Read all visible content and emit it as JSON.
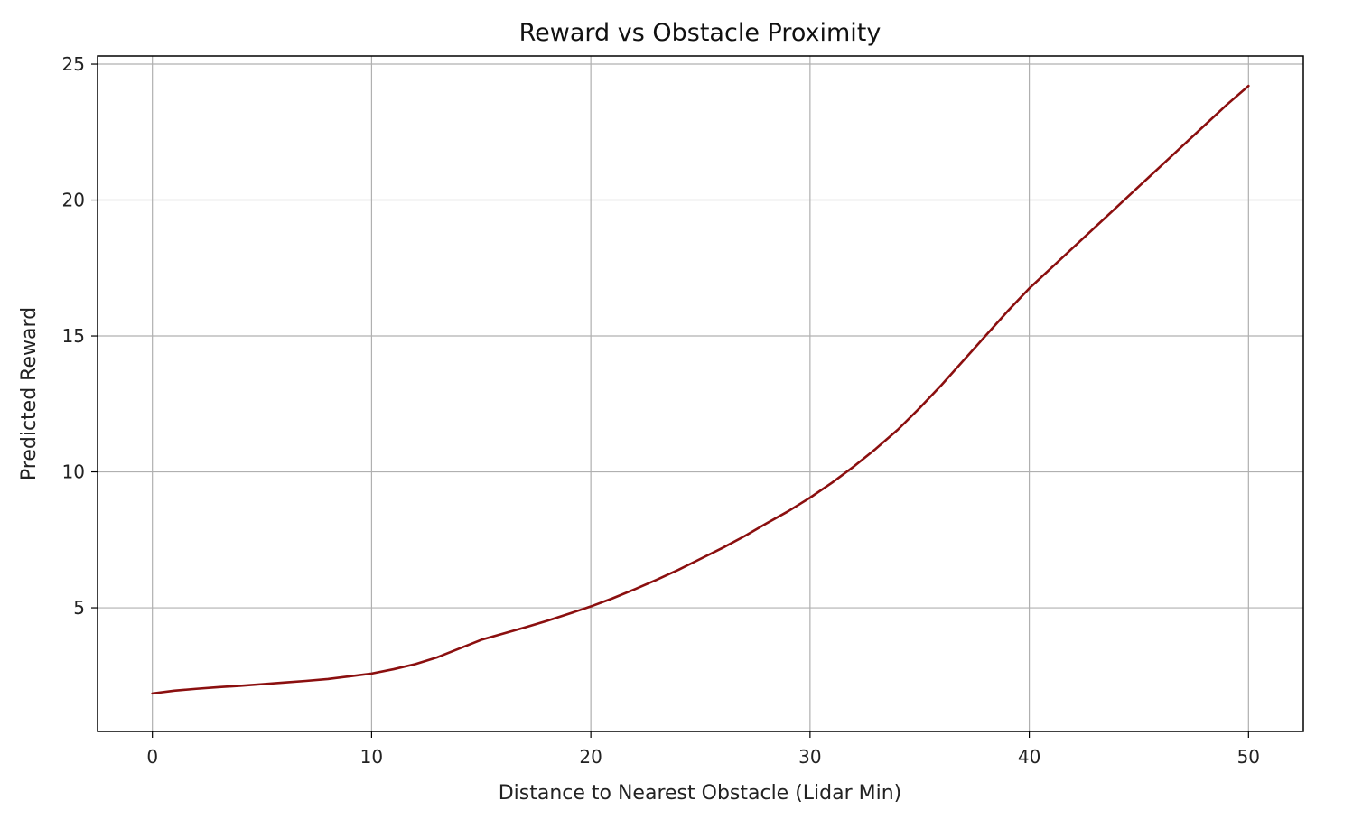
{
  "chart_data": {
    "type": "line",
    "title": "Reward vs Obstacle Proximity",
    "xlabel": "Distance to Nearest Obstacle (Lidar Min)",
    "ylabel": "Predicted Reward",
    "xlim": [
      -2.5,
      52.5
    ],
    "ylim": [
      0.45,
      25.3
    ],
    "xticks": [
      0,
      10,
      20,
      30,
      40,
      50
    ],
    "yticks": [
      5,
      10,
      15,
      20,
      25
    ],
    "grid": true,
    "series": [
      {
        "color": "#8b0f0f",
        "x": [
          0,
          1,
          2,
          3,
          4,
          5,
          6,
          7,
          8,
          9,
          10,
          11,
          12,
          13,
          14,
          15,
          16,
          17,
          18,
          19,
          20,
          21,
          22,
          23,
          24,
          25,
          26,
          27,
          28,
          29,
          30,
          31,
          32,
          33,
          34,
          35,
          36,
          37,
          38,
          39,
          40,
          41,
          42,
          43,
          44,
          45,
          46,
          47,
          48,
          49,
          50
        ],
        "y": [
          1.85,
          1.95,
          2.02,
          2.08,
          2.13,
          2.19,
          2.25,
          2.31,
          2.38,
          2.48,
          2.58,
          2.74,
          2.93,
          3.18,
          3.5,
          3.82,
          4.05,
          4.28,
          4.52,
          4.78,
          5.05,
          5.35,
          5.68,
          6.03,
          6.4,
          6.8,
          7.2,
          7.63,
          8.1,
          8.55,
          9.05,
          9.6,
          10.2,
          10.85,
          11.55,
          12.35,
          13.2,
          14.1,
          15.0,
          15.9,
          16.75,
          17.5,
          18.25,
          19.0,
          19.75,
          20.5,
          21.25,
          22.0,
          22.75,
          23.5,
          24.2
        ]
      }
    ]
  }
}
